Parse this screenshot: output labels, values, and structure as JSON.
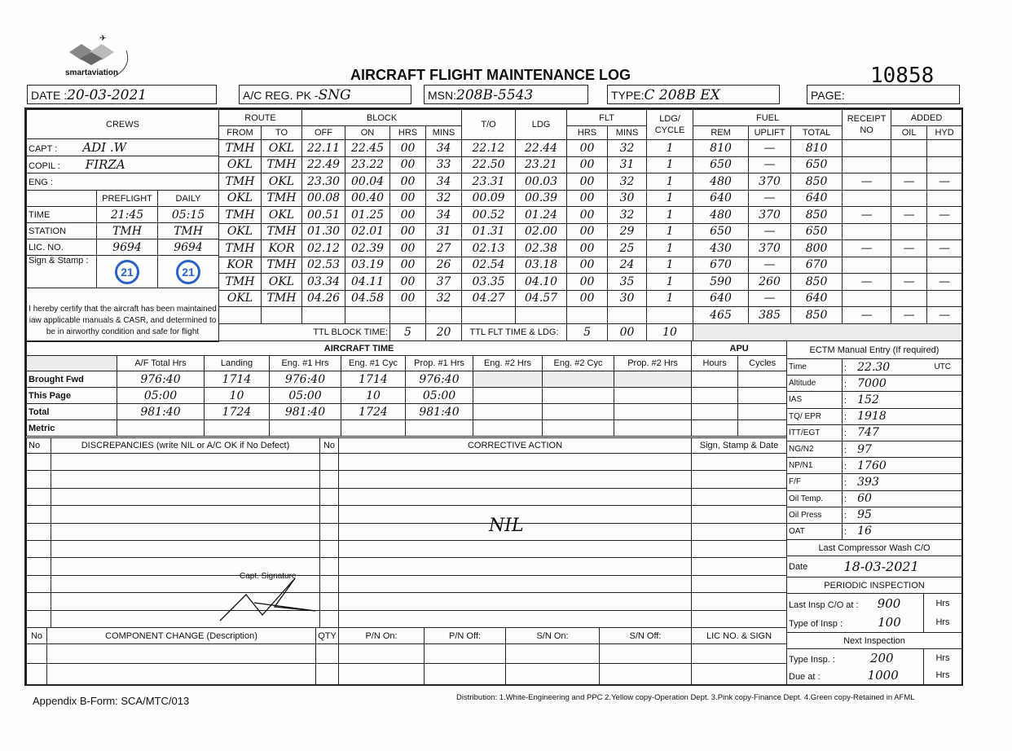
{
  "header": {
    "logo_text": "smartaviation",
    "title": "AIRCRAFT FLIGHT MAINTENANCE LOG",
    "serial_no": "10858",
    "date_label": "DATE :",
    "date_value": "20-03-2021",
    "reg_label": "A/C REG. PK -",
    "reg_value": "SNG",
    "msn_label": "MSN:",
    "msn_value": "208B-5543",
    "type_label": "TYPE:",
    "type_value": "C 208B EX",
    "page_label": "PAGE:",
    "page_value": ""
  },
  "crews": {
    "title": "CREWS",
    "capt_label": "CAPT :",
    "capt_value": "ADI .W",
    "copil_label": "COPIL :",
    "copil_value": "FIRZA",
    "eng_label": "ENG :",
    "eng_value": "",
    "preflight_label": "PREFLIGHT",
    "daily_label": "DAILY",
    "time_label": "TIME",
    "time_preflight": "21:45",
    "time_daily": "05:15",
    "station_label": "STATION",
    "station_preflight": "TMH",
    "station_daily": "TMH",
    "lic_label": "LIC. NO.",
    "lic_preflight": "9694",
    "lic_daily": "9694",
    "sign_label": "Sign & Stamp :",
    "stamp_text": "21",
    "certify": "I hereby certify that the aircraft has been maintained iaw applicable manuals & CASR, and determined to be in airworthy condition and safe for flight"
  },
  "flight_table": {
    "headers": {
      "route": "ROUTE",
      "from": "FROM",
      "to": "TO",
      "block": "BLOCK",
      "off": "OFF",
      "on": "ON",
      "hrs": "HRS",
      "mins": "MINS",
      "to_time": "T/O",
      "ldg": "LDG",
      "flt": "FLT",
      "flt_hrs": "HRS",
      "flt_mins": "MINS",
      "cycle": "LDG/ CYCLE",
      "fuel": "FUEL",
      "rem": "REM",
      "uplift": "UPLIFT",
      "total": "TOTAL",
      "receipt": "RECEIPT NO",
      "added": "ADDED",
      "oil": "OIL",
      "hyd": "HYD"
    },
    "rows": [
      [
        "TMH",
        "OKL",
        "22.11",
        "22.45",
        "00",
        "34",
        "22.12",
        "22.44",
        "00",
        "32",
        "1",
        "810",
        "—",
        "810",
        "",
        "",
        ""
      ],
      [
        "OKL",
        "TMH",
        "22.49",
        "23.22",
        "00",
        "33",
        "22.50",
        "23.21",
        "00",
        "31",
        "1",
        "650",
        "—",
        "650",
        "",
        "",
        ""
      ],
      [
        "TMH",
        "OKL",
        "23.30",
        "00.04",
        "00",
        "34",
        "23.31",
        "00.03",
        "00",
        "32",
        "1",
        "480",
        "370",
        "850",
        "—",
        "—",
        "—"
      ],
      [
        "OKL",
        "TMH",
        "00.08",
        "00.40",
        "00",
        "32",
        "00.09",
        "00.39",
        "00",
        "30",
        "1",
        "640",
        "—",
        "640",
        "",
        "",
        ""
      ],
      [
        "TMH",
        "OKL",
        "00.51",
        "01.25",
        "00",
        "34",
        "00.52",
        "01.24",
        "00",
        "32",
        "1",
        "480",
        "370",
        "850",
        "—",
        "—",
        "—"
      ],
      [
        "OKL",
        "TMH",
        "01.30",
        "02.01",
        "00",
        "31",
        "01.31",
        "02.00",
        "00",
        "29",
        "1",
        "650",
        "—",
        "650",
        "",
        "",
        ""
      ],
      [
        "TMH",
        "KOR",
        "02.12",
        "02.39",
        "00",
        "27",
        "02.13",
        "02.38",
        "00",
        "25",
        "1",
        "430",
        "370",
        "800",
        "—",
        "—",
        "—"
      ],
      [
        "KOR",
        "TMH",
        "02.53",
        "03.19",
        "00",
        "26",
        "02.54",
        "03.18",
        "00",
        "24",
        "1",
        "670",
        "—",
        "670",
        "",
        "",
        ""
      ],
      [
        "TMH",
        "OKL",
        "03.34",
        "04.11",
        "00",
        "37",
        "03.35",
        "04.10",
        "00",
        "35",
        "1",
        "590",
        "260",
        "850",
        "—",
        "—",
        "—"
      ],
      [
        "OKL",
        "TMH",
        "04.26",
        "04.58",
        "00",
        "32",
        "04.27",
        "04.57",
        "00",
        "30",
        "1",
        "640",
        "—",
        "640",
        "",
        "",
        ""
      ],
      [
        "",
        "",
        "",
        "",
        "",
        "",
        "",
        "",
        "",
        "",
        "",
        "465",
        "385",
        "850",
        "—",
        "—",
        "—"
      ]
    ],
    "ttl_block_label": "TTL BLOCK TIME:",
    "ttl_block_hrs": "5",
    "ttl_block_mins": "20",
    "ttl_flt_label": "TTL FLT TIME & LDG:",
    "ttl_flt_hrs": "5",
    "ttl_flt_mins": "00",
    "ttl_ldg": "10"
  },
  "aircraft_time": {
    "title": "AIRCRAFT TIME",
    "apu_title": "APU",
    "columns": [
      "A/F Total Hrs",
      "Landing",
      "Eng. #1 Hrs",
      "Eng. #1 Cyc",
      "Prop. #1 Hrs",
      "Eng. #2 Hrs",
      "Eng. #2 Cyc",
      "Prop. #2 Hrs",
      "Hours",
      "Cycles"
    ],
    "rows": [
      {
        "label": "Brought Fwd",
        "values": [
          "976:40",
          "1714",
          "976:40",
          "1714",
          "976:40",
          "",
          "",
          "",
          "",
          ""
        ]
      },
      {
        "label": "This Page",
        "values": [
          "05:00",
          "10",
          "05:00",
          "10",
          "05:00",
          "",
          "",
          "",
          "",
          ""
        ]
      },
      {
        "label": "Total",
        "values": [
          "981:40",
          "1724",
          "981:40",
          "1724",
          "981:40",
          "",
          "",
          "",
          "",
          ""
        ]
      },
      {
        "label": "Metric",
        "values": [
          "",
          "",
          "",
          "",
          "",
          "",
          "",
          "",
          "",
          ""
        ]
      }
    ]
  },
  "ectm": {
    "title": "ECTM Manual Entry (If required)",
    "entries": [
      {
        "label": "Time",
        "value": "22.30",
        "unit": "UTC"
      },
      {
        "label": "Altitude",
        "value": "7000",
        "unit": ""
      },
      {
        "label": "IAS",
        "value": "152",
        "unit": ""
      },
      {
        "label": "TQ/ EPR",
        "value": "1918",
        "unit": ""
      },
      {
        "label": "ITT/EGT",
        "value": "747",
        "unit": ""
      },
      {
        "label": "NG/N2",
        "value": "97",
        "unit": ""
      },
      {
        "label": "NP/N1",
        "value": "1760",
        "unit": ""
      },
      {
        "label": "F/F",
        "value": "393",
        "unit": ""
      },
      {
        "label": "Oil Temp.",
        "value": "60",
        "unit": ""
      },
      {
        "label": "Oil Press",
        "value": "95",
        "unit": ""
      },
      {
        "label": "OAT",
        "value": "16",
        "unit": ""
      }
    ],
    "compressor_title": "Last Compressor Wash C/O",
    "compressor_date_label": "Date",
    "compressor_date": "18-03-2021",
    "periodic_title": "PERIODIC INSPECTION",
    "last_insp_label": "Last Insp C/O at",
    "last_insp_value": "900",
    "type_insp_label": "Type of Insp",
    "type_insp_value": "100",
    "next_title": "Next Inspection",
    "next_type_label": "Type Insp.",
    "next_type_value": "200",
    "due_label": "Due at",
    "due_value": "1000",
    "hrs_unit": "Hrs"
  },
  "discrepancies": {
    "no_label": "No",
    "title": "DISCREPANCIES (write NIL or A/C OK if No Defect)",
    "no2_label": "No",
    "corrective_title": "CORRECTIVE ACTION",
    "sign_title": "Sign, Stamp & Date",
    "corrective_entry": "NIL",
    "capt_signature_label": "Capt. Signature"
  },
  "components": {
    "columns": [
      "No",
      "COMPONENT CHANGE (Description)",
      "QTY",
      "P/N On:",
      "P/N Off:",
      "S/N On:",
      "S/N Off:",
      "LIC NO. & SIGN"
    ]
  },
  "footer": {
    "form_id": "Appendix B-Form: SCA/MTC/013",
    "distribution": "Distribution: 1.White-Engineering and PPC  2.Yellow copy-Operation Dept.  3.Pink copy-Finance Dept.  4.Green copy-Retained in AFML"
  },
  "colors": {
    "stamp": "#2a62c9",
    "ink": "#0d0d0d"
  }
}
